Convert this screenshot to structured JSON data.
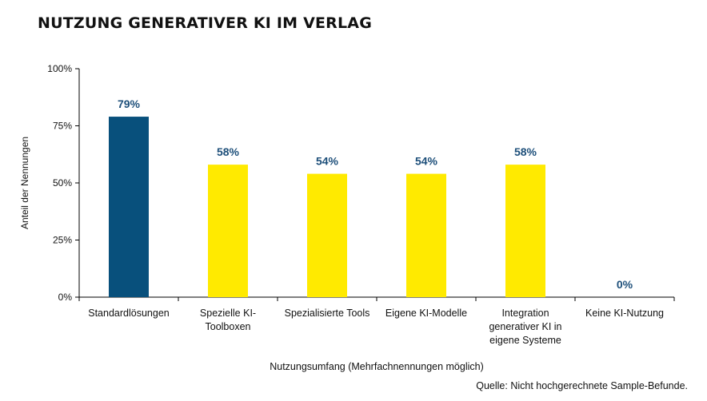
{
  "chart_data": {
    "type": "bar",
    "title": "NUTZUNG GENERATIVER KI IM VERLAG",
    "ylabel": "Anteil der Nennungen",
    "xlabel": "Nutzungsumfang (Mehrfachnennungen möglich)",
    "ylim": [
      0,
      100
    ],
    "yticks": [
      0,
      25,
      50,
      75,
      100
    ],
    "ytick_labels": [
      "0%",
      "25%",
      "50%",
      "75%",
      "100%"
    ],
    "categories": [
      [
        "Standardlösungen"
      ],
      [
        "Spezielle KI-",
        "Toolboxen"
      ],
      [
        "Spezialisierte Tools"
      ],
      [
        "Eigene KI-Modelle"
      ],
      [
        "Integration",
        "generativer KI in",
        "eigene Systeme"
      ],
      [
        "Keine KI-Nutzung"
      ]
    ],
    "values": [
      79,
      58,
      54,
      54,
      58,
      0
    ],
    "data_labels": [
      "79%",
      "58%",
      "54%",
      "54%",
      "58%",
      "0%"
    ],
    "bar_colors": [
      "#08507c",
      "#ffea00",
      "#ffea00",
      "#ffea00",
      "#ffea00",
      "#ffea00"
    ],
    "label_color": "#1d4f7a",
    "grid": false,
    "legend": "none"
  },
  "source_note": "Quelle: Nicht hochgerechnete Sample-Befunde."
}
